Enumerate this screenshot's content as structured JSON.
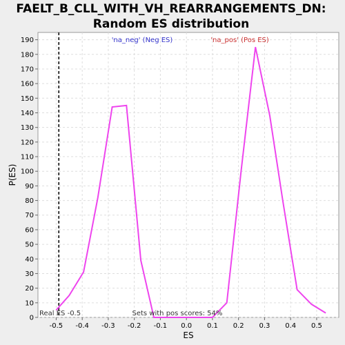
{
  "chart_data": {
    "type": "line",
    "title_line1": "FAELT_B_CLL_WITH_VH_REARRANGEMENTS_DN:",
    "title_line2": "Random ES distribution",
    "xlabel": "ES",
    "ylabel": "P(ES)",
    "xlim": [
      -0.57,
      0.585
    ],
    "ylim": [
      0,
      195
    ],
    "x_ticks": [
      -0.5,
      -0.4,
      -0.3,
      -0.2,
      -0.1,
      0.0,
      0.1,
      0.2,
      0.3,
      0.4,
      0.5
    ],
    "x_tick_labels": [
      "-0.5",
      "-0.4",
      "-0.3",
      "-0.2",
      "-0.1",
      "0.0",
      "0.1",
      "0.2",
      "0.3",
      "0.4",
      "0.5"
    ],
    "y_ticks": [
      0,
      10,
      20,
      30,
      40,
      50,
      60,
      70,
      80,
      90,
      100,
      110,
      120,
      130,
      140,
      150,
      160,
      170,
      180,
      190
    ],
    "grid": true,
    "series": [
      {
        "color": "#ee44ee",
        "x": [
          -0.5,
          -0.45,
          -0.395,
          -0.34,
          -0.285,
          -0.23,
          -0.175,
          -0.125,
          -0.07,
          -0.015,
          0.04,
          0.1,
          0.155,
          0.21,
          0.265,
          0.32,
          0.37,
          0.425,
          0.48,
          0.535
        ],
        "y": [
          5,
          15,
          31,
          82,
          144,
          145,
          39,
          0,
          0,
          0,
          0,
          0,
          10,
          100,
          185,
          138,
          80,
          19,
          9,
          3
        ]
      }
    ],
    "real_es": -0.49,
    "legend_neg": "'na_neg' (Neg ES)",
    "legend_pos": "'na_pos' (Pos ES)",
    "legend_neg_color": "#3333cc",
    "legend_pos_color": "#cc3333",
    "annotation_left": "Real ES -0.5",
    "annotation_center": "Sets with pos scores: 54%"
  }
}
